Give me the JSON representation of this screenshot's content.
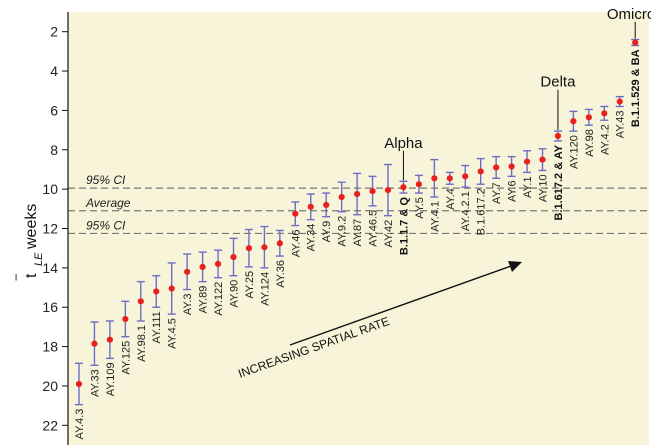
{
  "chart_data": {
    "type": "scatter",
    "ylabel_symbol": "t",
    "ylabel_sub": "LE",
    "ylabel_unit": "weeks",
    "ylim": [
      1,
      23
    ],
    "y_inverted": true,
    "yticks": [
      2,
      4,
      6,
      8,
      10,
      12,
      14,
      16,
      18,
      20,
      22
    ],
    "colors": {
      "background": "#f8f4d9",
      "point": "#e82020",
      "errorbar": "#6a6fc4",
      "refline": "#777777"
    },
    "reference_lines": [
      {
        "label": "95% CI",
        "y": 9.95
      },
      {
        "label": "Average",
        "y": 11.1
      },
      {
        "label": "95% CI",
        "y": 12.25
      }
    ],
    "points": [
      {
        "label": "AY.4.3",
        "y": 19.9,
        "ylo": 18.85,
        "yhi": 20.95
      },
      {
        "label": "AY.33",
        "y": 17.85,
        "ylo": 16.75,
        "yhi": 18.95
      },
      {
        "label": "AY.109",
        "y": 17.65,
        "ylo": 16.7,
        "yhi": 18.6
      },
      {
        "label": "AY.125",
        "y": 16.6,
        "ylo": 15.7,
        "yhi": 17.5
      },
      {
        "label": "AY.98.1",
        "y": 15.7,
        "ylo": 14.7,
        "yhi": 16.7
      },
      {
        "label": "AY.111",
        "y": 15.2,
        "ylo": 14.4,
        "yhi": 16.0
      },
      {
        "label": "AY.4.5",
        "y": 15.05,
        "ylo": 13.75,
        "yhi": 16.35
      },
      {
        "label": "AY.3",
        "y": 14.2,
        "ylo": 13.3,
        "yhi": 15.1
      },
      {
        "label": "AY.89",
        "y": 13.95,
        "ylo": 13.2,
        "yhi": 14.7
      },
      {
        "label": "AY.122",
        "y": 13.8,
        "ylo": 13.1,
        "yhi": 14.5
      },
      {
        "label": "AY.90",
        "y": 13.45,
        "ylo": 12.5,
        "yhi": 14.4
      },
      {
        "label": "AY.25",
        "y": 13.0,
        "ylo": 12.05,
        "yhi": 13.95
      },
      {
        "label": "AY.124",
        "y": 12.95,
        "ylo": 11.9,
        "yhi": 14.0
      },
      {
        "label": "AY.36",
        "y": 12.75,
        "ylo": 12.1,
        "yhi": 13.4
      },
      {
        "label": "AY.46",
        "y": 11.25,
        "ylo": 10.65,
        "yhi": 11.85
      },
      {
        "label": "AY.34",
        "y": 10.9,
        "ylo": 10.25,
        "yhi": 11.55
      },
      {
        "label": "AY.9",
        "y": 10.8,
        "ylo": 10.2,
        "yhi": 11.4
      },
      {
        "label": "AY.9.2",
        "y": 10.4,
        "ylo": 9.65,
        "yhi": 11.15
      },
      {
        "label": "AY.87",
        "y": 10.25,
        "ylo": 9.2,
        "yhi": 11.3
      },
      {
        "label": "AY.46.5",
        "y": 10.1,
        "ylo": 9.35,
        "yhi": 10.85
      },
      {
        "label": "AY.42",
        "y": 10.05,
        "ylo": 8.75,
        "yhi": 11.35
      },
      {
        "label": "B.1.1.7 & Q",
        "y": 9.9,
        "ylo": 9.6,
        "yhi": 10.2,
        "bold": true
      },
      {
        "label": "AY.5",
        "y": 9.75,
        "ylo": 9.3,
        "yhi": 10.2
      },
      {
        "label": "AY.4.1",
        "y": 9.45,
        "ylo": 8.5,
        "yhi": 10.4
      },
      {
        "label": "AY.4",
        "y": 9.45,
        "ylo": 9.15,
        "yhi": 9.75
      },
      {
        "label": "AY.4.2.1",
        "y": 9.35,
        "ylo": 8.8,
        "yhi": 9.9
      },
      {
        "label": "B.1.617.2",
        "y": 9.1,
        "ylo": 8.45,
        "yhi": 9.75
      },
      {
        "label": "AY.7",
        "y": 8.9,
        "ylo": 8.35,
        "yhi": 9.45
      },
      {
        "label": "AY.6",
        "y": 8.85,
        "ylo": 8.35,
        "yhi": 9.35
      },
      {
        "label": "AY.1",
        "y": 8.6,
        "ylo": 8.05,
        "yhi": 9.15
      },
      {
        "label": "AY.10",
        "y": 8.5,
        "ylo": 7.95,
        "yhi": 9.05
      },
      {
        "label": "B.1.617.2 & AY",
        "y": 7.3,
        "ylo": 7.05,
        "yhi": 7.55,
        "bold": true
      },
      {
        "label": "AY.120",
        "y": 6.55,
        "ylo": 6.05,
        "yhi": 7.05
      },
      {
        "label": "AY.98",
        "y": 6.35,
        "ylo": 5.95,
        "yhi": 6.75
      },
      {
        "label": "AY.4.2",
        "y": 6.15,
        "ylo": 5.8,
        "yhi": 6.5
      },
      {
        "label": "AY.43",
        "y": 5.55,
        "ylo": 5.3,
        "yhi": 5.8
      },
      {
        "label": "B.1.1.529 & BA",
        "y": 2.55,
        "ylo": 2.4,
        "yhi": 2.7,
        "bold": true
      }
    ],
    "annotations": [
      {
        "text": "Alpha",
        "target": "B.1.1.7 & Q",
        "y": 8.05
      },
      {
        "text": "Delta",
        "target": "B.1.617.2 & AY",
        "y": 4.95
      },
      {
        "text": "Omicron",
        "target": "B.1.1.529 & BA",
        "y": 1.5
      }
    ],
    "trend_label": "INCREASING SPATIAL RATE"
  }
}
